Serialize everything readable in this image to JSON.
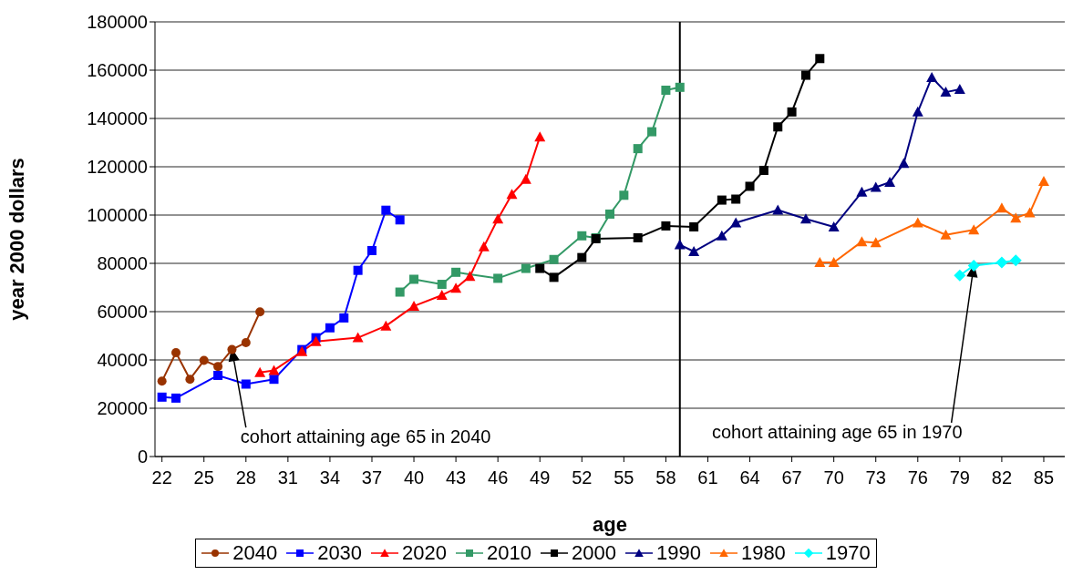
{
  "chart_data": {
    "type": "line",
    "xlabel": "age",
    "ylabel": "year 2000 dollars",
    "xlim": [
      21.5,
      86.5
    ],
    "xticks": [
      22,
      25,
      28,
      31,
      34,
      37,
      40,
      43,
      46,
      49,
      52,
      55,
      58,
      61,
      64,
      67,
      70,
      73,
      76,
      79,
      82,
      85
    ],
    "ylim": [
      0,
      180000
    ],
    "yticks": [
      0,
      20000,
      40000,
      60000,
      80000,
      100000,
      120000,
      140000,
      160000,
      180000
    ],
    "grid": "y",
    "legend": "bottom",
    "series": [
      {
        "name": "2040",
        "color": "#993300",
        "marker": "circle",
        "x": [
          22,
          23,
          24,
          25,
          26,
          27,
          28,
          29
        ],
        "values": [
          31200,
          43000,
          32000,
          39800,
          37300,
          44300,
          47200,
          59900
        ]
      },
      {
        "name": "2030",
        "color": "#0000ff",
        "marker": "square",
        "x": [
          22,
          23,
          26,
          28,
          30,
          32,
          33,
          34,
          35,
          36,
          37,
          38,
          39
        ],
        "values": [
          24600,
          24200,
          33600,
          30000,
          32000,
          44300,
          49200,
          53300,
          57400,
          77100,
          85300,
          102000,
          98000
        ]
      },
      {
        "name": "2020",
        "color": "#ff0000",
        "marker": "triangle",
        "x": [
          29,
          30,
          32,
          33,
          36,
          38,
          40,
          42,
          43,
          44,
          45,
          46,
          47,
          48,
          49
        ],
        "values": [
          34800,
          35700,
          43500,
          47600,
          49200,
          54100,
          62300,
          66800,
          69700,
          74600,
          86900,
          98400,
          108600,
          114800,
          132400
        ]
      },
      {
        "name": "2010",
        "color": "#339966",
        "marker": "square",
        "x": [
          39,
          40,
          42,
          43,
          46,
          48,
          50,
          52,
          53,
          54,
          55,
          56,
          57,
          58,
          59
        ],
        "values": [
          68100,
          73400,
          71300,
          76300,
          73800,
          77900,
          81600,
          91400,
          90600,
          100400,
          108200,
          127500,
          134500,
          151700,
          152900
        ]
      },
      {
        "name": "2000",
        "color": "#000000",
        "marker": "square",
        "x": [
          49,
          50,
          52,
          53,
          56,
          58,
          60,
          62,
          63,
          64,
          65,
          66,
          67,
          68,
          69
        ],
        "values": [
          77900,
          74200,
          82400,
          90200,
          90600,
          95500,
          95100,
          106200,
          106600,
          111900,
          118500,
          136500,
          142700,
          157900,
          164800
        ]
      },
      {
        "name": "1990",
        "color": "#000080",
        "marker": "triangle",
        "x": [
          59,
          60,
          62,
          63,
          66,
          68,
          70,
          72,
          73,
          74,
          75,
          76,
          77,
          78,
          79
        ],
        "values": [
          87700,
          84900,
          91400,
          96800,
          102100,
          98400,
          95100,
          109500,
          111500,
          113600,
          121400,
          142700,
          157000,
          150900,
          152100
        ]
      },
      {
        "name": "1980",
        "color": "#ff6600",
        "marker": "triangle",
        "x": [
          69,
          70,
          72,
          73,
          76,
          78,
          80,
          82,
          83,
          84,
          85
        ],
        "values": [
          80400,
          80400,
          89000,
          88600,
          96800,
          91800,
          93900,
          102900,
          98800,
          100900,
          114000
        ]
      },
      {
        "name": "1970",
        "color": "#00ffff",
        "marker": "diamond",
        "x": [
          79,
          80,
          82,
          83
        ],
        "values": [
          75000,
          79100,
          80400,
          81200
        ]
      }
    ],
    "ref_lines": [
      {
        "axis": "x",
        "value": 59,
        "color": "#000000"
      }
    ],
    "annotations": [
      "cohort attaining age 65 in 2040",
      "cohort attaining age 65 in 1970"
    ]
  }
}
